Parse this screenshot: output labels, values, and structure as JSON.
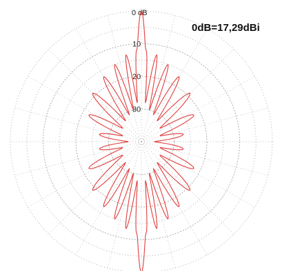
{
  "chart_data": {
    "type": "polar",
    "title": "",
    "gain_reference": "0dB=17,29dBi",
    "radial_unit": "dB",
    "radial_ticks": [
      {
        "value": 0,
        "label": "0 dB"
      },
      {
        "value": -10,
        "label": "10"
      },
      {
        "value": -20,
        "label": "20"
      },
      {
        "value": -30,
        "label": "30"
      }
    ],
    "radial_range": [
      -40,
      0
    ],
    "scale": "logarithmic",
    "grid": true,
    "angular_grid_step_deg": 15,
    "series": [
      {
        "color": "#e03c3c",
        "main_lobe_dB": 0,
        "main_lobe_directions_deg": [
          0,
          180
        ],
        "points": [
          {
            "angle": 0,
            "dB": 0
          },
          {
            "angle": 3,
            "dB": -12
          },
          {
            "angle": 6,
            "dB": -28
          },
          {
            "angle": 10,
            "dB": -13
          },
          {
            "angle": 14,
            "dB": -30
          },
          {
            "angle": 19,
            "dB": -15
          },
          {
            "angle": 24,
            "dB": -31
          },
          {
            "angle": 30,
            "dB": -17
          },
          {
            "angle": 37,
            "dB": -32
          },
          {
            "angle": 45,
            "dB": -19
          },
          {
            "angle": 54,
            "dB": -33
          },
          {
            "angle": 63,
            "dB": -22
          },
          {
            "angle": 72,
            "dB": -34
          },
          {
            "angle": 80,
            "dB": -27
          },
          {
            "angle": 90,
            "dB": -36
          },
          {
            "angle": 100,
            "dB": -27
          },
          {
            "angle": 108,
            "dB": -34
          },
          {
            "angle": 117,
            "dB": -22
          },
          {
            "angle": 126,
            "dB": -33
          },
          {
            "angle": 135,
            "dB": -19
          },
          {
            "angle": 143,
            "dB": -32
          },
          {
            "angle": 150,
            "dB": -17
          },
          {
            "angle": 156,
            "dB": -31
          },
          {
            "angle": 161,
            "dB": -15
          },
          {
            "angle": 166,
            "dB": -30
          },
          {
            "angle": 170,
            "dB": -13
          },
          {
            "angle": 174,
            "dB": -28
          },
          {
            "angle": 177,
            "dB": -12
          },
          {
            "angle": 180,
            "dB": 0
          }
        ]
      }
    ]
  }
}
